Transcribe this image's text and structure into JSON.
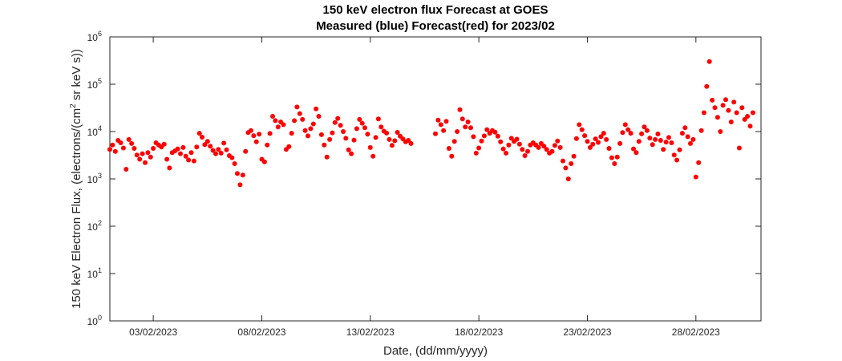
{
  "chart_data": {
    "type": "scatter",
    "title": "150 keV electron flux Forecast at GOES",
    "subtitle": "Measured (blue) Forecast(red) for 2023/02",
    "xlabel": "Date, (dd/mm/yyyy)",
    "ylabel_prefix": "150 keV Electron Flux, (electrons/(cm",
    "ylabel_sup": "2",
    "ylabel_suffix": " sr keV s))",
    "y_scale": "log",
    "ylim": [
      1,
      1000000
    ],
    "xlim": [
      "2023-02-01",
      "2023-03-03"
    ],
    "x_ticks": [
      {
        "date": "2023-02-03",
        "label": "03/02/2023"
      },
      {
        "date": "2023-02-08",
        "label": "08/02/2023"
      },
      {
        "date": "2023-02-13",
        "label": "13/02/2023"
      },
      {
        "date": "2023-02-18",
        "label": "18/02/2023"
      },
      {
        "date": "2023-02-23",
        "label": "23/02/2023"
      },
      {
        "date": "2023-02-28",
        "label": "28/02/2023"
      }
    ],
    "y_ticks": [
      {
        "value": 1,
        "base": "10",
        "exp": "0"
      },
      {
        "value": 10,
        "base": "10",
        "exp": "1"
      },
      {
        "value": 100,
        "base": "10",
        "exp": "2"
      },
      {
        "value": 1000,
        "base": "10",
        "exp": "3"
      },
      {
        "value": 10000,
        "base": "10",
        "exp": "4"
      },
      {
        "value": 100000,
        "base": "10",
        "exp": "5"
      },
      {
        "value": 1000000,
        "base": "10",
        "exp": "6"
      }
    ],
    "grid": false,
    "point_color": "#ff0000",
    "series": [
      {
        "points": [
          [
            "2023-02-01T00:00",
            4200
          ],
          [
            "2023-02-01T03:00",
            5200
          ],
          [
            "2023-02-01T06:00",
            3800
          ],
          [
            "2023-02-01T09:00",
            6500
          ],
          [
            "2023-02-01T12:00",
            5800
          ],
          [
            "2023-02-01T15:00",
            4500
          ],
          [
            "2023-02-01T18:00",
            1600
          ],
          [
            "2023-02-01T21:00",
            6800
          ],
          [
            "2023-02-02T00:00",
            5600
          ],
          [
            "2023-02-02T03:00",
            4400
          ],
          [
            "2023-02-02T06:00",
            3200
          ],
          [
            "2023-02-02T09:00",
            2600
          ],
          [
            "2023-02-02T12:00",
            3400
          ],
          [
            "2023-02-02T15:00",
            2200
          ],
          [
            "2023-02-02T18:00",
            3600
          ],
          [
            "2023-02-02T21:00",
            2900
          ],
          [
            "2023-02-03T00:00",
            4400
          ],
          [
            "2023-02-03T03:00",
            5800
          ],
          [
            "2023-02-03T06:00",
            5200
          ],
          [
            "2023-02-03T09:00",
            4700
          ],
          [
            "2023-02-03T12:00",
            5400
          ],
          [
            "2023-02-03T15:00",
            2600
          ],
          [
            "2023-02-03T18:00",
            1700
          ],
          [
            "2023-02-03T21:00",
            3600
          ],
          [
            "2023-02-04T00:00",
            3900
          ],
          [
            "2023-02-04T03:00",
            4300
          ],
          [
            "2023-02-04T06:00",
            3400
          ],
          [
            "2023-02-04T09:00",
            4600
          ],
          [
            "2023-02-04T12:00",
            3000
          ],
          [
            "2023-02-04T15:00",
            2500
          ],
          [
            "2023-02-04T18:00",
            3600
          ],
          [
            "2023-02-04T21:00",
            2400
          ],
          [
            "2023-02-05T00:00",
            4700
          ],
          [
            "2023-02-05T03:00",
            9200
          ],
          [
            "2023-02-05T06:00",
            7600
          ],
          [
            "2023-02-05T09:00",
            5300
          ],
          [
            "2023-02-05T12:00",
            6200
          ],
          [
            "2023-02-05T15:00",
            4900
          ],
          [
            "2023-02-05T18:00",
            4000
          ],
          [
            "2023-02-05T21:00",
            3400
          ],
          [
            "2023-02-06T00:00",
            4200
          ],
          [
            "2023-02-06T03:00",
            3500
          ],
          [
            "2023-02-06T06:00",
            5700
          ],
          [
            "2023-02-06T09:00",
            4100
          ],
          [
            "2023-02-06T12:00",
            3100
          ],
          [
            "2023-02-06T15:00",
            2800
          ],
          [
            "2023-02-06T18:00",
            2100
          ],
          [
            "2023-02-06T21:00",
            1300
          ],
          [
            "2023-02-07T00:00",
            750
          ],
          [
            "2023-02-07T03:00",
            1200
          ],
          [
            "2023-02-07T06:00",
            3800
          ],
          [
            "2023-02-07T09:00",
            9500
          ],
          [
            "2023-02-07T12:00",
            10500
          ],
          [
            "2023-02-07T15:00",
            8200
          ],
          [
            "2023-02-07T18:00",
            6100
          ],
          [
            "2023-02-07T21:00",
            8800
          ],
          [
            "2023-02-08T00:00",
            2600
          ],
          [
            "2023-02-08T03:00",
            2300
          ],
          [
            "2023-02-08T06:00",
            5200
          ],
          [
            "2023-02-08T09:00",
            9100
          ],
          [
            "2023-02-08T12:00",
            21000
          ],
          [
            "2023-02-08T15:00",
            17000
          ],
          [
            "2023-02-08T18:00",
            12500
          ],
          [
            "2023-02-08T21:00",
            16000
          ],
          [
            "2023-02-09T00:00",
            14000
          ],
          [
            "2023-02-09T03:00",
            4200
          ],
          [
            "2023-02-09T06:00",
            4800
          ],
          [
            "2023-02-09T09:00",
            9200
          ],
          [
            "2023-02-09T12:00",
            17000
          ],
          [
            "2023-02-09T15:00",
            33000
          ],
          [
            "2023-02-09T18:00",
            24000
          ],
          [
            "2023-02-09T21:00",
            18000
          ],
          [
            "2023-02-10T00:00",
            10500
          ],
          [
            "2023-02-10T03:00",
            8100
          ],
          [
            "2023-02-10T06:00",
            11500
          ],
          [
            "2023-02-10T09:00",
            14500
          ],
          [
            "2023-02-10T12:00",
            30000
          ],
          [
            "2023-02-10T15:00",
            21000
          ],
          [
            "2023-02-10T18:00",
            8600
          ],
          [
            "2023-02-10T21:00",
            5200
          ],
          [
            "2023-02-11T00:00",
            2900
          ],
          [
            "2023-02-11T03:00",
            6800
          ],
          [
            "2023-02-11T06:00",
            9400
          ],
          [
            "2023-02-11T09:00",
            15500
          ],
          [
            "2023-02-11T12:00",
            19000
          ],
          [
            "2023-02-11T15:00",
            13500
          ],
          [
            "2023-02-11T18:00",
            10000
          ],
          [
            "2023-02-11T21:00",
            7200
          ],
          [
            "2023-02-12T00:00",
            4100
          ],
          [
            "2023-02-12T03:00",
            3400
          ],
          [
            "2023-02-12T06:00",
            6600
          ],
          [
            "2023-02-12T09:00",
            11500
          ],
          [
            "2023-02-12T12:00",
            18000
          ],
          [
            "2023-02-12T15:00",
            15000
          ],
          [
            "2023-02-12T18:00",
            12000
          ],
          [
            "2023-02-12T21:00",
            8800
          ],
          [
            "2023-02-13T00:00",
            4600
          ],
          [
            "2023-02-13T03:00",
            3000
          ],
          [
            "2023-02-13T06:00",
            7500
          ],
          [
            "2023-02-13T09:00",
            18500
          ],
          [
            "2023-02-13T12:00",
            12500
          ],
          [
            "2023-02-13T15:00",
            10200
          ],
          [
            "2023-02-13T18:00",
            9300
          ],
          [
            "2023-02-13T21:00",
            6800
          ],
          [
            "2023-02-14T00:00",
            5100
          ],
          [
            "2023-02-14T03:00",
            6400
          ],
          [
            "2023-02-14T06:00",
            9600
          ],
          [
            "2023-02-14T09:00",
            8000
          ],
          [
            "2023-02-14T12:00",
            7000
          ],
          [
            "2023-02-14T15:00",
            6100
          ],
          [
            "2023-02-14T18:00",
            6500
          ],
          [
            "2023-02-14T21:00",
            5600
          ],
          [
            "2023-02-16T00:00",
            9000
          ],
          [
            "2023-02-16T03:00",
            17500
          ],
          [
            "2023-02-16T06:00",
            14000
          ],
          [
            "2023-02-16T09:00",
            10500
          ],
          [
            "2023-02-16T12:00",
            16500
          ],
          [
            "2023-02-16T15:00",
            4400
          ],
          [
            "2023-02-16T18:00",
            3000
          ],
          [
            "2023-02-16T21:00",
            6200
          ],
          [
            "2023-02-17T00:00",
            10000
          ],
          [
            "2023-02-17T03:00",
            29000
          ],
          [
            "2023-02-17T06:00",
            18500
          ],
          [
            "2023-02-17T09:00",
            12500
          ],
          [
            "2023-02-17T12:00",
            16000
          ],
          [
            "2023-02-17T15:00",
            12000
          ],
          [
            "2023-02-17T18:00",
            7800
          ],
          [
            "2023-02-17T21:00",
            3500
          ],
          [
            "2023-02-18T00:00",
            4500
          ],
          [
            "2023-02-18T03:00",
            6300
          ],
          [
            "2023-02-18T06:00",
            8100
          ],
          [
            "2023-02-18T09:00",
            11000
          ],
          [
            "2023-02-18T12:00",
            9200
          ],
          [
            "2023-02-18T15:00",
            10500
          ],
          [
            "2023-02-18T18:00",
            9700
          ],
          [
            "2023-02-18T21:00",
            8000
          ],
          [
            "2023-02-19T00:00",
            6100
          ],
          [
            "2023-02-19T03:00",
            4300
          ],
          [
            "2023-02-19T06:00",
            3500
          ],
          [
            "2023-02-19T09:00",
            5200
          ],
          [
            "2023-02-19T12:00",
            7200
          ],
          [
            "2023-02-19T15:00",
            6200
          ],
          [
            "2023-02-19T18:00",
            6900
          ],
          [
            "2023-02-19T21:00",
            5400
          ],
          [
            "2023-02-20T00:00",
            4200
          ],
          [
            "2023-02-20T03:00",
            3100
          ],
          [
            "2023-02-20T06:00",
            3800
          ],
          [
            "2023-02-20T09:00",
            5200
          ],
          [
            "2023-02-20T12:00",
            5800
          ],
          [
            "2023-02-20T15:00",
            5200
          ],
          [
            "2023-02-20T18:00",
            4600
          ],
          [
            "2023-02-20T21:00",
            5600
          ],
          [
            "2023-02-21T00:00",
            4900
          ],
          [
            "2023-02-21T03:00",
            4200
          ],
          [
            "2023-02-21T06:00",
            3500
          ],
          [
            "2023-02-21T09:00",
            3800
          ],
          [
            "2023-02-21T12:00",
            5100
          ],
          [
            "2023-02-21T15:00",
            6300
          ],
          [
            "2023-02-21T18:00",
            4600
          ],
          [
            "2023-02-21T21:00",
            2400
          ],
          [
            "2023-02-22T00:00",
            1700
          ],
          [
            "2023-02-22T03:00",
            1000
          ],
          [
            "2023-02-22T06:00",
            2100
          ],
          [
            "2023-02-22T09:00",
            3000
          ],
          [
            "2023-02-22T12:00",
            7100
          ],
          [
            "2023-02-22T15:00",
            14000
          ],
          [
            "2023-02-22T18:00",
            11000
          ],
          [
            "2023-02-22T21:00",
            8200
          ],
          [
            "2023-02-23T00:00",
            6200
          ],
          [
            "2023-02-23T03:00",
            4600
          ],
          [
            "2023-02-23T06:00",
            5400
          ],
          [
            "2023-02-23T09:00",
            7000
          ],
          [
            "2023-02-23T12:00",
            5900
          ],
          [
            "2023-02-23T15:00",
            7800
          ],
          [
            "2023-02-23T18:00",
            9200
          ],
          [
            "2023-02-23T21:00",
            6800
          ],
          [
            "2023-02-24T00:00",
            4400
          ],
          [
            "2023-02-24T03:00",
            2800
          ],
          [
            "2023-02-24T06:00",
            2100
          ],
          [
            "2023-02-24T09:00",
            2900
          ],
          [
            "2023-02-24T12:00",
            5600
          ],
          [
            "2023-02-24T15:00",
            9500
          ],
          [
            "2023-02-24T18:00",
            14000
          ],
          [
            "2023-02-24T21:00",
            11000
          ],
          [
            "2023-02-25T00:00",
            9200
          ],
          [
            "2023-02-25T03:00",
            4300
          ],
          [
            "2023-02-25T06:00",
            3600
          ],
          [
            "2023-02-25T09:00",
            6200
          ],
          [
            "2023-02-25T12:00",
            9000
          ],
          [
            "2023-02-25T15:00",
            12500
          ],
          [
            "2023-02-25T18:00",
            10500
          ],
          [
            "2023-02-25T21:00",
            7300
          ],
          [
            "2023-02-26T00:00",
            5300
          ],
          [
            "2023-02-26T03:00",
            6800
          ],
          [
            "2023-02-26T06:00",
            8900
          ],
          [
            "2023-02-26T09:00",
            6500
          ],
          [
            "2023-02-26T12:00",
            4200
          ],
          [
            "2023-02-26T15:00",
            6000
          ],
          [
            "2023-02-26T18:00",
            7500
          ],
          [
            "2023-02-26T21:00",
            5800
          ],
          [
            "2023-02-27T00:00",
            3200
          ],
          [
            "2023-02-27T03:00",
            2500
          ],
          [
            "2023-02-27T06:00",
            4100
          ],
          [
            "2023-02-27T09:00",
            9200
          ],
          [
            "2023-02-27T12:00",
            12000
          ],
          [
            "2023-02-27T15:00",
            7800
          ],
          [
            "2023-02-27T18:00",
            5600
          ],
          [
            "2023-02-27T21:00",
            6800
          ],
          [
            "2023-02-28T00:00",
            1100
          ],
          [
            "2023-02-28T03:00",
            2200
          ],
          [
            "2023-02-28T06:00",
            10500
          ],
          [
            "2023-02-28T09:00",
            25000
          ],
          [
            "2023-02-28T12:00",
            90000
          ],
          [
            "2023-02-28T15:00",
            300000
          ],
          [
            "2023-02-28T18:00",
            46000
          ],
          [
            "2023-02-28T21:00",
            32000
          ],
          [
            "2023-03-01T00:00",
            20000
          ],
          [
            "2023-03-01T03:00",
            10000
          ],
          [
            "2023-03-01T06:00",
            36000
          ],
          [
            "2023-03-01T09:00",
            47000
          ],
          [
            "2023-03-01T12:00",
            28000
          ],
          [
            "2023-03-01T15:00",
            16000
          ],
          [
            "2023-03-01T18:00",
            42000
          ],
          [
            "2023-03-01T21:00",
            25000
          ],
          [
            "2023-03-02T00:00",
            4500
          ],
          [
            "2023-03-02T03:00",
            32000
          ],
          [
            "2023-03-02T06:00",
            18000
          ],
          [
            "2023-03-02T09:00",
            21000
          ],
          [
            "2023-03-02T12:00",
            13000
          ],
          [
            "2023-03-02T15:00",
            25000
          ]
        ]
      }
    ]
  }
}
